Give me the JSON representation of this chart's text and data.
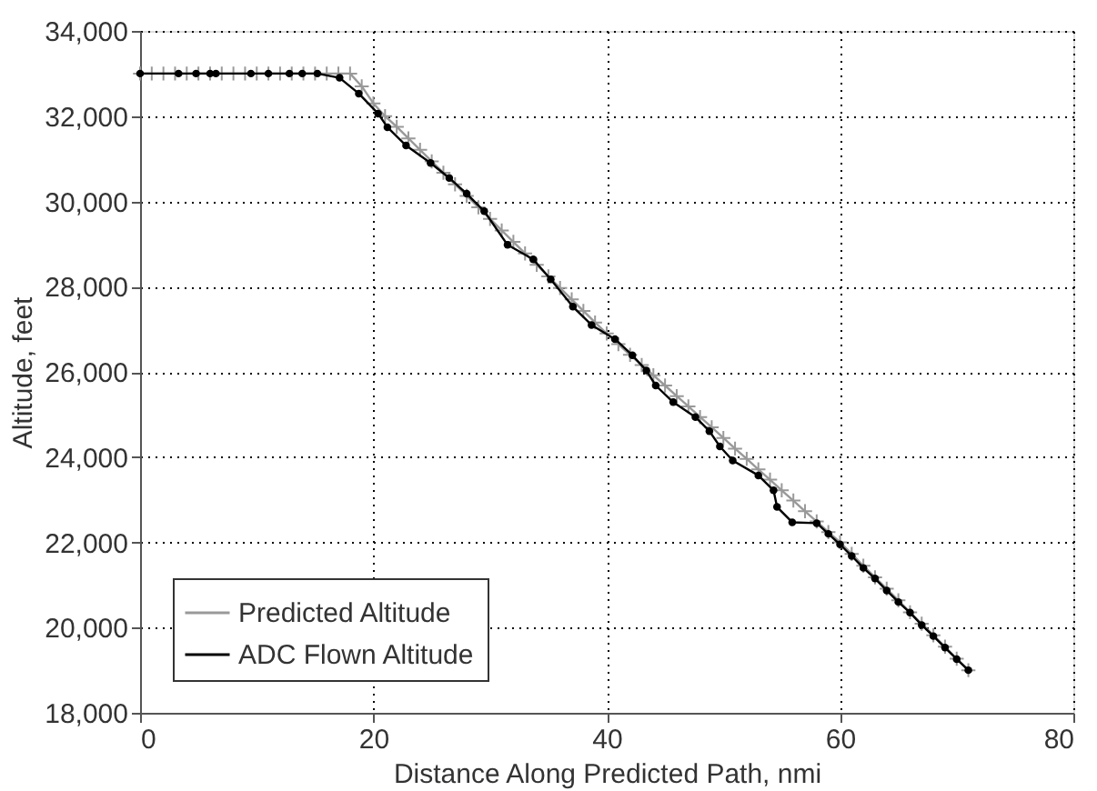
{
  "chart_data": {
    "type": "line",
    "xlabel": "Distance Along Predicted Path, nmi",
    "ylabel": "Altitude, feet",
    "xlim": [
      0,
      80
    ],
    "xticks": [
      0,
      20,
      40,
      60,
      80
    ],
    "ylim": [
      18000,
      34000
    ],
    "yticks": [
      {
        "value": 18000,
        "label": "18,000"
      },
      {
        "value": 20000,
        "label": "20,000"
      },
      {
        "value": 22000,
        "label": "22,000"
      },
      {
        "value": 24000,
        "label": "24,000"
      },
      {
        "value": 26000,
        "label": "26,000"
      },
      {
        "value": 28000,
        "label": "28,000"
      },
      {
        "value": 30000,
        "label": "30,000"
      },
      {
        "value": 32000,
        "label": "32,000"
      },
      {
        "value": 34000,
        "label": "34,000"
      }
    ],
    "grid": true,
    "legend": "bottom left",
    "line_style": "solid",
    "series": [
      {
        "name": "Predicted Altitude",
        "color": "#999999",
        "marker": "cross",
        "x": [
          0,
          1,
          2,
          3,
          4,
          5,
          6,
          7,
          8,
          9,
          10,
          11,
          12,
          13,
          14,
          15,
          16,
          17,
          18,
          19,
          20,
          21,
          22,
          23,
          24,
          25,
          26,
          27,
          28,
          29,
          30,
          31,
          32,
          33,
          34,
          35,
          36,
          37,
          38,
          39,
          40,
          41,
          42,
          43,
          44,
          45,
          46,
          47,
          48,
          49,
          50,
          51,
          52,
          53,
          54,
          55,
          56,
          57,
          58,
          59,
          60,
          61,
          62,
          63,
          64,
          65,
          66,
          67,
          68,
          69,
          70,
          71
        ],
        "values": [
          33000,
          33000,
          33000,
          33000,
          33000,
          33000,
          33000,
          33000,
          33000,
          33000,
          33000,
          33000,
          33000,
          33000,
          33000,
          33000,
          33000,
          33000,
          33000,
          32700,
          32300,
          32000,
          31750,
          31480,
          31210,
          30940,
          30670,
          30400,
          30130,
          29860,
          29590,
          29320,
          29050,
          28780,
          28510,
          28240,
          27970,
          27700,
          27430,
          27160,
          26900,
          26650,
          26400,
          26160,
          25920,
          25680,
          25430,
          25190,
          24940,
          24700,
          24450,
          24200,
          23960,
          23710,
          23470,
          23220,
          22980,
          22730,
          22490,
          22240,
          22000,
          21730,
          21450,
          21180,
          20910,
          20640,
          20360,
          20090,
          19820,
          19550,
          19270,
          19000
        ]
      },
      {
        "name": "ADC Flown Altitude",
        "color": "#000000",
        "marker": "circle",
        "x": [
          0,
          3.3,
          4.8,
          6,
          6.5,
          9.5,
          11,
          12.8,
          13.9,
          15.2,
          17.1,
          18.75,
          20.4,
          21.2,
          22.8,
          24.9,
          26.5,
          28,
          29.5,
          31.5,
          33.7,
          35.2,
          37.1,
          38.7,
          40.7,
          42.2,
          43.4,
          44.2,
          45.7,
          47.6,
          48.8,
          49.7,
          50.8,
          53,
          54.3,
          54.6,
          55.9,
          58,
          59,
          60,
          61,
          62,
          63,
          64,
          65,
          66,
          67,
          68,
          69,
          70,
          71
        ],
        "values": [
          33000,
          33000,
          33000,
          33000,
          33000,
          33000,
          33000,
          33000,
          33000,
          33000,
          32900,
          32530,
          32060,
          31740,
          31310,
          30900,
          30550,
          30180,
          29770,
          28980,
          28640,
          28170,
          27530,
          27100,
          26770,
          26390,
          26030,
          25680,
          25290,
          24940,
          24610,
          24250,
          23920,
          23570,
          23220,
          22830,
          22470,
          22450,
          22200,
          21950,
          21680,
          21400,
          21150,
          20870,
          20600,
          20350,
          20060,
          19800,
          19530,
          19260,
          19000
        ]
      }
    ]
  }
}
